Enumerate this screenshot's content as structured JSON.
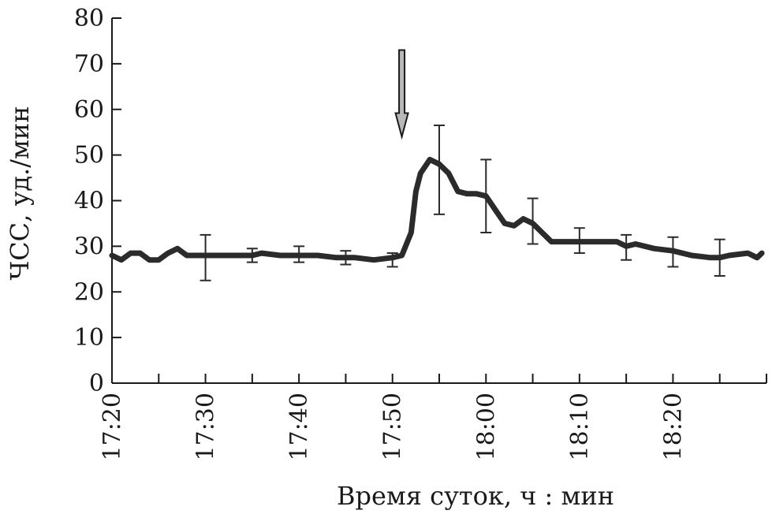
{
  "chart_data": {
    "type": "line",
    "title": "",
    "xlabel": "Время суток, ч : мин",
    "ylabel": "ЧСС, уд./мин",
    "ylim": [
      0,
      80
    ],
    "y_ticks": [
      0,
      10,
      20,
      30,
      40,
      50,
      60,
      70,
      80
    ],
    "x_unit": "time of day (h:min)",
    "xlim": [
      "17:20",
      "18:30"
    ],
    "x_tick_labels": [
      "17:20",
      "17:30",
      "17:40",
      "17:50",
      "18:00",
      "18:10",
      "18:20"
    ],
    "grid": false,
    "legend": "none",
    "line_color": "#2b2b2b",
    "series": [
      {
        "x": [
          "17:20",
          "17:21",
          "17:22",
          "17:23",
          "17:24",
          "17:25",
          "17:26",
          "17:27",
          "17:28",
          "17:29",
          "17:30",
          "17:32",
          "17:34",
          "17:35",
          "17:36",
          "17:38",
          "17:40",
          "17:42",
          "17:44",
          "17:45",
          "17:46",
          "17:48",
          "17:50",
          "17:51",
          "17:52",
          "17:52.5",
          "17:53",
          "17:54",
          "17:55",
          "17:56",
          "17:57",
          "17:58",
          "17:59",
          "18:00",
          "18:01",
          "18:02",
          "18:03",
          "18:04",
          "18:05",
          "18:06",
          "18:07",
          "18:08",
          "18:09",
          "18:10",
          "18:12",
          "18:14",
          "18:15",
          "18:16",
          "18:18",
          "18:20",
          "18:22",
          "18:24",
          "18:25",
          "18:26",
          "18:28",
          "18:29",
          "18:29.5"
        ],
        "values": [
          28,
          27,
          28.5,
          28.5,
          27,
          27,
          28.5,
          29.5,
          28,
          28,
          28,
          28,
          28,
          28,
          28.5,
          28,
          28,
          28,
          27.5,
          27.5,
          27.5,
          27,
          27.5,
          28,
          33,
          42,
          46,
          49,
          48,
          46,
          42,
          41.5,
          41.5,
          41,
          38,
          35,
          34.5,
          36,
          35,
          33,
          31,
          31,
          31,
          31,
          31,
          31,
          30,
          30.5,
          29.5,
          29,
          28,
          27.5,
          27.5,
          28,
          28.5,
          27.5,
          28.5
        ]
      }
    ],
    "error_bars": [
      {
        "x": "17:30",
        "y": 27.5,
        "low": 22.5,
        "high": 32.5
      },
      {
        "x": "17:35",
        "y": 28,
        "low": 26.5,
        "high": 29.5
      },
      {
        "x": "17:40",
        "y": 28,
        "low": 26.5,
        "high": 30
      },
      {
        "x": "17:45",
        "y": 27.5,
        "low": 26,
        "high": 29
      },
      {
        "x": "17:50",
        "y": 27,
        "low": 25.5,
        "high": 28.5
      },
      {
        "x": "17:55",
        "y": 47,
        "low": 37,
        "high": 56.5
      },
      {
        "x": "18:00",
        "y": 41,
        "low": 33,
        "high": 49
      },
      {
        "x": "18:05",
        "y": 35.5,
        "low": 30.5,
        "high": 40.5
      },
      {
        "x": "18:10",
        "y": 31,
        "low": 28.5,
        "high": 34
      },
      {
        "x": "18:15",
        "y": 30,
        "low": 27,
        "high": 32.5
      },
      {
        "x": "18:20",
        "y": 29,
        "low": 25.5,
        "high": 32
      },
      {
        "x": "18:25",
        "y": 27.5,
        "low": 23.5,
        "high": 31.5
      }
    ],
    "annotation": {
      "type": "arrow-down",
      "x": "17:51",
      "y_top": 73,
      "y_bottom": 54,
      "color": "#b8b8b8"
    }
  }
}
